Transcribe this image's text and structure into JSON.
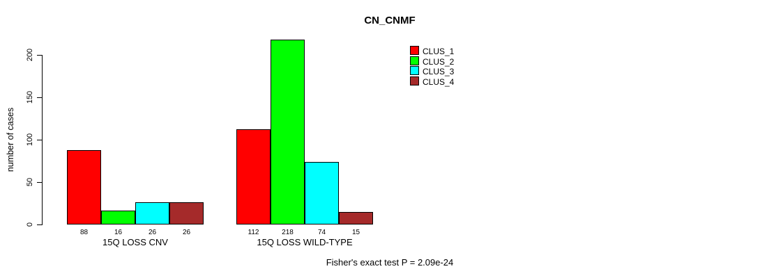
{
  "chart_data": {
    "type": "bar",
    "title": "CN_CNMF",
    "ylabel": "number of cases",
    "xlabel": "",
    "ylim": [
      0,
      200
    ],
    "yticks": [
      0,
      50,
      100,
      150,
      200
    ],
    "grid": false,
    "legend_position": "top-right",
    "categories": [
      "15Q LOSS CNV",
      "15Q LOSS WILD-TYPE"
    ],
    "series": [
      {
        "name": "CLUS_1",
        "color": "#ff0000",
        "values": [
          88,
          112
        ]
      },
      {
        "name": "CLUS_2",
        "color": "#00ff00",
        "values": [
          16,
          218
        ]
      },
      {
        "name": "CLUS_3",
        "color": "#00ffff",
        "values": [
          26,
          74
        ]
      },
      {
        "name": "CLUS_4",
        "color": "#a52a2a",
        "values": [
          26,
          15
        ]
      }
    ],
    "bar_value_labels": [
      [
        88,
        16,
        26,
        26
      ],
      [
        112,
        218,
        74,
        15
      ]
    ],
    "annotation": "Fisher's exact test P = 2.09e-24"
  }
}
